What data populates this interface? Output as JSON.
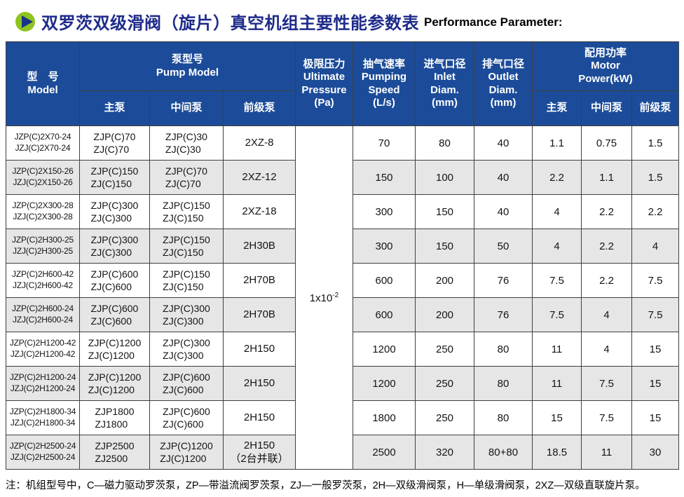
{
  "header": {
    "title_zh": "双罗茨双级滑阀（旋片）真空机组主要性能参数表",
    "title_en": "Performance Parameter:",
    "icon_circle_color": "#8fc31f",
    "icon_triangle_color": "#17338c",
    "title_color": "#1e2b8a"
  },
  "table": {
    "colors": {
      "header_bg": "#1c4c99",
      "alt_row_bg": "#e6e6e6",
      "border": "#3f3f3f"
    },
    "header": {
      "model": [
        "型　号",
        "Model"
      ],
      "pump_model_group": [
        "泵型号",
        "Pump Model"
      ],
      "pump_sub": [
        "主泵",
        "中间泵",
        "前级泵"
      ],
      "ultimate": [
        "极限压力",
        "Ultimate",
        "Pressure",
        "(Pa)"
      ],
      "speed": [
        "抽气速率",
        "Pumping",
        "Speed",
        "(L/s)"
      ],
      "inlet": [
        "进气口径",
        "Inlet",
        "Diam.",
        "(mm)"
      ],
      "outlet": [
        "排气口径",
        "Outlet",
        "Diam.",
        "(mm)"
      ],
      "power_group": [
        "配用功率",
        "Motor",
        "Power(kW)"
      ],
      "power_sub": [
        "主泵",
        "中间泵",
        "前级泵"
      ]
    },
    "ultimate_pressure": {
      "base": "1x10",
      "exponent": "-2"
    },
    "rows": [
      {
        "model": [
          "JZP(C)2X70-24",
          "JZJ(C)2X70-24"
        ],
        "main_pump": [
          "ZJP(C)70",
          "ZJ(C)70"
        ],
        "mid_pump": [
          "ZJP(C)30",
          "ZJ(C)30"
        ],
        "fore_pump": [
          "2XZ-8"
        ],
        "speed": "70",
        "inlet": "80",
        "outlet": "40",
        "power_main": "1.1",
        "power_mid": "0.75",
        "power_fore": "1.5"
      },
      {
        "model": [
          "JZP(C)2X150-26",
          "JZJ(C)2X150-26"
        ],
        "main_pump": [
          "ZJP(C)150",
          "ZJ(C)150"
        ],
        "mid_pump": [
          "ZJP(C)70",
          "ZJ(C)70"
        ],
        "fore_pump": [
          "2XZ-12"
        ],
        "speed": "150",
        "inlet": "100",
        "outlet": "40",
        "power_main": "2.2",
        "power_mid": "1.1",
        "power_fore": "1.5"
      },
      {
        "model": [
          "JZP(C)2X300-28",
          "JZJ(C)2X300-28"
        ],
        "main_pump": [
          "ZJP(C)300",
          "ZJ(C)300"
        ],
        "mid_pump": [
          "ZJP(C)150",
          "ZJ(C)150"
        ],
        "fore_pump": [
          "2XZ-18"
        ],
        "speed": "300",
        "inlet": "150",
        "outlet": "40",
        "power_main": "4",
        "power_mid": "2.2",
        "power_fore": "2.2"
      },
      {
        "model": [
          "JZP(C)2H300-25",
          "JZJ(C)2H300-25"
        ],
        "main_pump": [
          "ZJP(C)300",
          "ZJ(C)300"
        ],
        "mid_pump": [
          "ZJP(C)150",
          "ZJ(C)150"
        ],
        "fore_pump": [
          "2H30B"
        ],
        "speed": "300",
        "inlet": "150",
        "outlet": "50",
        "power_main": "4",
        "power_mid": "2.2",
        "power_fore": "4"
      },
      {
        "model": [
          "JZP(C)2H600-42",
          "JZJ(C)2H600-42"
        ],
        "main_pump": [
          "ZJP(C)600",
          "ZJ(C)600"
        ],
        "mid_pump": [
          "ZJP(C)150",
          "ZJ(C)150"
        ],
        "fore_pump": [
          "2H70B"
        ],
        "speed": "600",
        "inlet": "200",
        "outlet": "76",
        "power_main": "7.5",
        "power_mid": "2.2",
        "power_fore": "7.5"
      },
      {
        "model": [
          "JZP(C)2H600-24",
          "JZJ(C)2H600-24"
        ],
        "main_pump": [
          "ZJP(C)600",
          "ZJ(C)600"
        ],
        "mid_pump": [
          "ZJP(C)300",
          "ZJ(C)300"
        ],
        "fore_pump": [
          "2H70B"
        ],
        "speed": "600",
        "inlet": "200",
        "outlet": "76",
        "power_main": "7.5",
        "power_mid": "4",
        "power_fore": "7.5"
      },
      {
        "model": [
          "JZP(C)2H1200-42",
          "JZJ(C)2H1200-42"
        ],
        "main_pump": [
          "ZJP(C)1200",
          "ZJ(C)1200"
        ],
        "mid_pump": [
          "ZJP(C)300",
          "ZJ(C)300"
        ],
        "fore_pump": [
          "2H150"
        ],
        "speed": "1200",
        "inlet": "250",
        "outlet": "80",
        "power_main": "11",
        "power_mid": "4",
        "power_fore": "15"
      },
      {
        "model": [
          "JZP(C)2H1200-24",
          "JZJ(C)2H1200-24"
        ],
        "main_pump": [
          "ZJP(C)1200",
          "ZJ(C)1200"
        ],
        "mid_pump": [
          "ZJP(C)600",
          "ZJ(C)600"
        ],
        "fore_pump": [
          "2H150"
        ],
        "speed": "1200",
        "inlet": "250",
        "outlet": "80",
        "power_main": "11",
        "power_mid": "7.5",
        "power_fore": "15"
      },
      {
        "model": [
          "JZP(C)2H1800-34",
          "JZJ(C)2H1800-34"
        ],
        "main_pump": [
          "ZJP1800",
          "ZJ1800"
        ],
        "mid_pump": [
          "ZJP(C)600",
          "ZJ(C)600"
        ],
        "fore_pump": [
          "2H150"
        ],
        "speed": "1800",
        "inlet": "250",
        "outlet": "80",
        "power_main": "15",
        "power_mid": "7.5",
        "power_fore": "15"
      },
      {
        "model": [
          "JZP(C)2H2500-24",
          "JZJ(C)2H2500-24"
        ],
        "main_pump": [
          "ZJP2500",
          "ZJ2500"
        ],
        "mid_pump": [
          "ZJP(C)1200",
          "ZJ(C)1200"
        ],
        "fore_pump": [
          "2H150",
          "（2台并联）"
        ],
        "speed": "2500",
        "inlet": "320",
        "outlet": "80+80",
        "power_main": "18.5",
        "power_mid": "11",
        "power_fore": "30"
      }
    ]
  },
  "footnote": "注：机组型号中，C—磁力驱动罗茨泵，ZP—带溢流阀罗茨泵，ZJ—一般罗茨泵，2H—双级滑阀泵，H—单级滑阀泵，2XZ—双级直联旋片泵。"
}
